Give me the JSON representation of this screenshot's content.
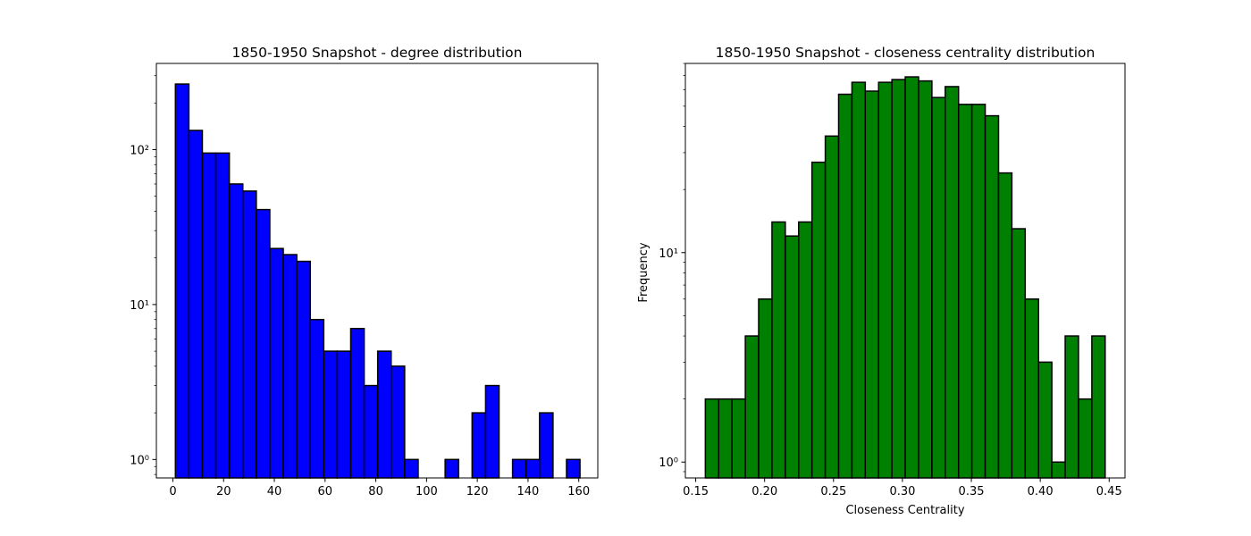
{
  "chart_data": [
    {
      "type": "bar",
      "title": "1850-1950 Snapshot - degree distribution",
      "xlabel": "",
      "ylabel": "",
      "yscale": "log",
      "xlim": [
        -6.5,
        167.5
      ],
      "ylim": [
        0.76,
        360
      ],
      "xticks": [
        0,
        20,
        40,
        60,
        80,
        100,
        120,
        140,
        160
      ],
      "xtick_labels": [
        "0",
        "20",
        "40",
        "60",
        "80",
        "100",
        "120",
        "140",
        "160"
      ],
      "yticks": [
        1,
        10,
        100
      ],
      "ytick_labels": [
        "10⁰",
        "10¹",
        "10²"
      ],
      "bin_start": 1,
      "bin_width": 5.316,
      "values": [
        265,
        133,
        95,
        95,
        60,
        54,
        41,
        23,
        21,
        19,
        8,
        5,
        5,
        7,
        3,
        5,
        4,
        1,
        0,
        0,
        1,
        0,
        2,
        3,
        0,
        1,
        1,
        2,
        0,
        1
      ],
      "bar_color": "#0000ff",
      "edge_color": "#000000",
      "grid": false
    },
    {
      "type": "bar",
      "title": "1850-1950 Snapshot - closeness centrality distribution",
      "xlabel": "Closeness Centrality",
      "ylabel": "Frequency",
      "yscale": "log",
      "xlim": [
        0.1425,
        0.4615
      ],
      "ylim": [
        0.84,
        80
      ],
      "xticks": [
        0.15,
        0.2,
        0.25,
        0.3,
        0.35,
        0.4,
        0.45
      ],
      "xtick_labels": [
        "0.15",
        "0.20",
        "0.25",
        "0.30",
        "0.35",
        "0.40",
        "0.45"
      ],
      "yticks": [
        1,
        10
      ],
      "ytick_labels": [
        "10⁰",
        "10¹"
      ],
      "bin_start": 0.157,
      "bin_width": 0.00967,
      "values": [
        2,
        2,
        2,
        4,
        6,
        14,
        12,
        14,
        27,
        36,
        57,
        65,
        59,
        65,
        67,
        69,
        66,
        55,
        62,
        51,
        51,
        45,
        24,
        13,
        6,
        3,
        1,
        4,
        2,
        4
      ],
      "bar_color": "#008000",
      "edge_color": "#000000",
      "grid": false
    }
  ]
}
